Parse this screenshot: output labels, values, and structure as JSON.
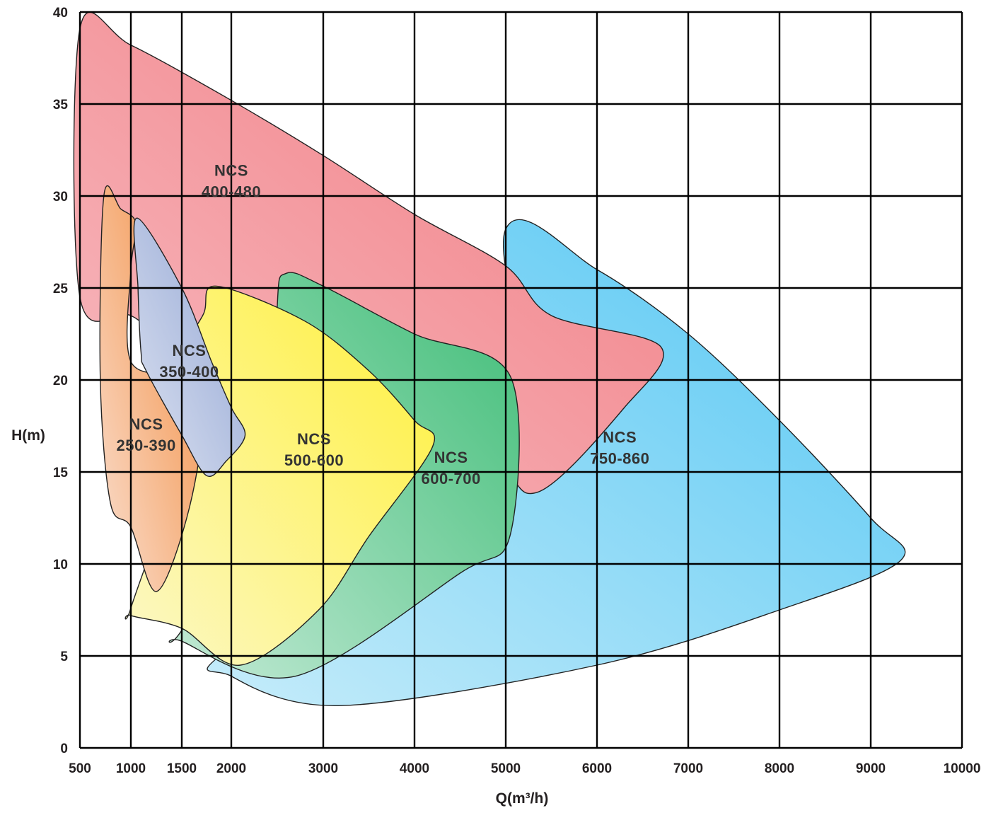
{
  "chart_data": {
    "type": "area",
    "xlabel": "Q(m³/h)",
    "ylabel": "H(m)",
    "ylim": [
      0,
      40
    ],
    "grid": true,
    "x_ticks": [
      {
        "label": "500",
        "i": 0
      },
      {
        "label": "1000",
        "i": 1
      },
      {
        "label": "1500",
        "i": 2
      },
      {
        "label": "2000",
        "i": 3
      },
      {
        "label": "3000",
        "i": 4
      },
      {
        "label": "4000",
        "i": 5
      },
      {
        "label": "5000",
        "i": 6
      },
      {
        "label": "6000",
        "i": 7
      },
      {
        "label": "7000",
        "i": 8
      },
      {
        "label": "8000",
        "i": 9
      },
      {
        "label": "9000",
        "i": 10
      },
      {
        "label": "10000",
        "i": 11
      }
    ],
    "y_ticks": [
      "0",
      "5",
      "10",
      "15",
      "20",
      "25",
      "30",
      "35",
      "40"
    ],
    "series": [
      {
        "name_line1": "NCS",
        "name_line2": "750-860",
        "colors": [
          "#c6ecfa",
          "#52c6f3"
        ],
        "label_at": [
          6250,
          16.6
        ],
        "outline": [
          [
            5000,
            28.2
          ],
          [
            6000,
            26
          ],
          [
            7000,
            22.5
          ],
          [
            8000,
            17.8
          ],
          [
            9000,
            12.5
          ],
          [
            9330,
            10.2
          ],
          [
            8000,
            7.5
          ],
          [
            6000,
            4.5
          ],
          [
            3200,
            2.3
          ],
          [
            2000,
            3.9
          ],
          [
            2000,
            5.5
          ],
          [
            5000,
            15.3
          ]
        ]
      },
      {
        "name_line1": "NCS",
        "name_line2": "400-480",
        "colors": [
          "#f8bcc2",
          "#f07a80"
        ],
        "label_at": [
          2000,
          31.1
        ],
        "outline": [
          [
            500,
            39.1
          ],
          [
            1000,
            38.2
          ],
          [
            2000,
            35.2
          ],
          [
            3000,
            32.2
          ],
          [
            4000,
            29
          ],
          [
            5000,
            26.2
          ],
          [
            5500,
            23.5
          ],
          [
            6700,
            21.8
          ],
          [
            6300,
            18.5
          ],
          [
            5350,
            13.9
          ],
          [
            4800,
            16
          ],
          [
            3000,
            22
          ],
          [
            1500,
            22
          ],
          [
            1000,
            23.5
          ],
          [
            500,
            24.5
          ]
        ]
      },
      {
        "name_line1": "NCS",
        "name_line2": "600-700",
        "colors": [
          "#c4ead6",
          "#3fbd77"
        ],
        "label_at": [
          4400,
          15.5
        ],
        "outline": [
          [
            2600,
            25.8
          ],
          [
            3000,
            25.1
          ],
          [
            4000,
            22.5
          ],
          [
            5050,
            20.2
          ],
          [
            5050,
            11.6
          ],
          [
            4500,
            9.5
          ],
          [
            2700,
            3.9
          ],
          [
            1500,
            5.8
          ],
          [
            1500,
            6.4
          ],
          [
            2500,
            14
          ],
          [
            2500,
            24
          ]
        ]
      },
      {
        "name_line1": "NCS",
        "name_line2": "500-600",
        "colors": [
          "#fcf8c8",
          "#fff03a"
        ],
        "label_at": [
          2900,
          16.5
        ],
        "outline": [
          [
            1850,
            25.1
          ],
          [
            2800,
            23.2
          ],
          [
            3500,
            20.5
          ],
          [
            4000,
            17.8
          ],
          [
            4200,
            16.4
          ],
          [
            3500,
            11.5
          ],
          [
            2950,
            7.5
          ],
          [
            2100,
            4.5
          ],
          [
            1500,
            6.5
          ],
          [
            1000,
            7.2
          ],
          [
            1000,
            7.6
          ],
          [
            1400,
            14.5
          ],
          [
            1500,
            21
          ],
          [
            1720,
            23.6
          ]
        ]
      },
      {
        "name_line1": "NCS",
        "name_line2": "250-390",
        "colors": [
          "#fadfd0",
          "#f28a3a"
        ],
        "label_at": [
          1150,
          17.3
        ],
        "outline": [
          [
            735,
            30
          ],
          [
            900,
            29.3
          ],
          [
            1050,
            28.5
          ],
          [
            1000,
            26
          ],
          [
            1000,
            21
          ],
          [
            1500,
            20
          ],
          [
            1700,
            17.5
          ],
          [
            1550,
            12.5
          ],
          [
            1250,
            8.5
          ],
          [
            1000,
            12
          ],
          [
            800,
            13.3
          ],
          [
            700,
            20
          ]
        ]
      },
      {
        "name_line1": "NCS",
        "name_line2": "350-400",
        "colors": [
          "#dde3f1",
          "#8fa3d3"
        ],
        "label_at": [
          1575,
          21.3
        ],
        "outline": [
          [
            1060,
            28.8
          ],
          [
            1500,
            25
          ],
          [
            1800,
            21
          ],
          [
            2000,
            18.5
          ],
          [
            2150,
            17
          ],
          [
            1950,
            15.6
          ],
          [
            1750,
            14.8
          ],
          [
            1500,
            17
          ],
          [
            1150,
            20.5
          ],
          [
            1100,
            21.5
          ],
          [
            1070,
            25
          ]
        ]
      }
    ]
  }
}
